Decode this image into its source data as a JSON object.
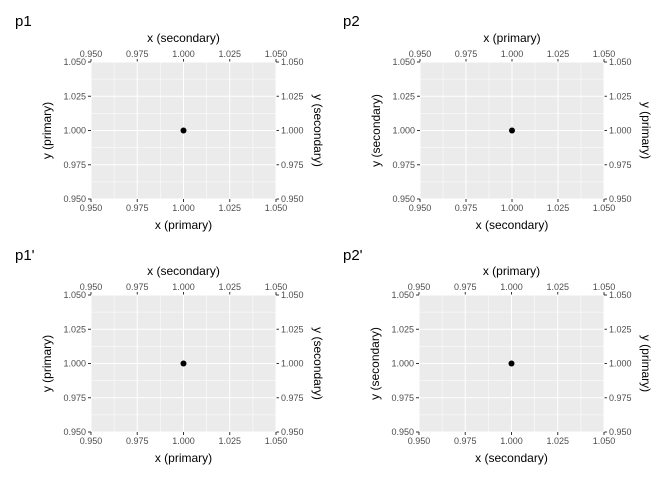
{
  "chart_data": [
    {
      "type": "scatter",
      "title": "p1",
      "xlabel": "x (primary)",
      "ylabel": "y (primary)",
      "x2label": "x (secondary)",
      "y2label": "y (secondary)",
      "xlim": [
        0.95,
        1.05
      ],
      "ylim": [
        0.95,
        1.05
      ],
      "ticks": [
        "0.950",
        "0.975",
        "1.000",
        "1.025",
        "1.050"
      ],
      "tick_values": [
        0.95,
        0.975,
        1.0,
        1.025,
        1.05
      ],
      "points": [
        {
          "x": 1.0,
          "y": 1.0
        }
      ],
      "grid": true
    },
    {
      "type": "scatter",
      "title": "p2",
      "xlabel": "x (secondary)",
      "ylabel": "y (secondary)",
      "x2label": "x (primary)",
      "y2label": "y (primary)",
      "xlim": [
        0.95,
        1.05
      ],
      "ylim": [
        0.95,
        1.05
      ],
      "ticks": [
        "0.950",
        "0.975",
        "1.000",
        "1.025",
        "1.050"
      ],
      "tick_values": [
        0.95,
        0.975,
        1.0,
        1.025,
        1.05
      ],
      "points": [
        {
          "x": 1.0,
          "y": 1.0
        }
      ],
      "grid": true
    },
    {
      "type": "scatter",
      "title": "p1'",
      "xlabel": "x (primary)",
      "ylabel": "y (primary)",
      "x2label": "x (secondary)",
      "y2label": "y (secondary)",
      "xlim": [
        0.95,
        1.05
      ],
      "ylim": [
        0.95,
        1.05
      ],
      "ticks": [
        "0.950",
        "0.975",
        "1.000",
        "1.025",
        "1.050"
      ],
      "tick_values": [
        0.95,
        0.975,
        1.0,
        1.025,
        1.05
      ],
      "points": [
        {
          "x": 1.0,
          "y": 1.0
        }
      ],
      "grid": true
    },
    {
      "type": "scatter",
      "title": "p2'",
      "xlabel": "x (secondary)",
      "ylabel": "y (secondary)",
      "x2label": "x (primary)",
      "y2label": "y (primary)",
      "xlim": [
        0.95,
        1.05
      ],
      "ylim": [
        0.95,
        1.05
      ],
      "ticks": [
        "0.950",
        "0.975",
        "1.000",
        "1.025",
        "1.050"
      ],
      "tick_values": [
        0.95,
        0.975,
        1.0,
        1.025,
        1.05
      ],
      "points": [
        {
          "x": 1.0,
          "y": 1.0
        }
      ],
      "grid": true
    }
  ],
  "colors": {
    "panel": "#ebebeb",
    "grid": "#ffffff",
    "point": "#000000",
    "tick_text": "#4d4d4d"
  }
}
